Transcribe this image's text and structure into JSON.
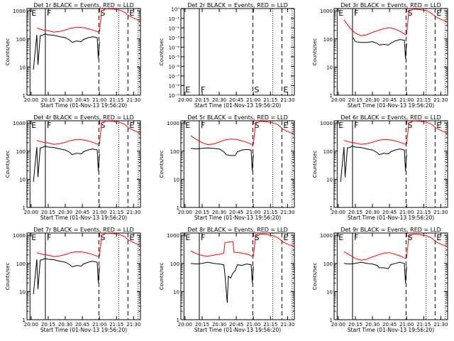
{
  "chart_data": [
    {
      "title": "Det 1r BLACK = Events, RED = LLD",
      "type": "line",
      "ylabel": "Counts/sec",
      "xlabel": "Start Time (01-Nov-13 19:56:20)",
      "x_ticks": [
        "20:00",
        "20:15",
        "20:30",
        "20:45",
        "21:00",
        "21:15",
        "21:30"
      ],
      "y_ticks": [
        "1",
        "10",
        "100",
        "1000"
      ],
      "yscale": "log",
      "ylim": [
        1,
        1200
      ],
      "xlim": [
        "19:56",
        "21:36"
      ],
      "markers": [
        "E",
        "F",
        "S",
        "E"
      ],
      "series": [
        {
          "color": "#ff0000",
          "x": [
            "20:05",
            "20:10",
            "20:15",
            "20:20",
            "20:25",
            "20:30",
            "20:35",
            "20:40",
            "20:45",
            "20:50",
            "20:55",
            "20:59",
            "21:00",
            "21:02",
            "21:06",
            "21:12",
            "21:18",
            "21:22",
            "21:26",
            "21:30",
            "21:36"
          ],
          "y": [
            240,
            210,
            195,
            175,
            185,
            205,
            240,
            260,
            255,
            230,
            200,
            175,
            180,
            1000,
            1180,
            1150,
            1050,
            900,
            650,
            550,
            430
          ]
        },
        {
          "color": "#000000",
          "x": [
            "20:02",
            "20:05",
            "20:06",
            "20:08",
            "20:10",
            "20:12",
            "20:15",
            "20:20",
            "20:25",
            "20:30",
            "20:34",
            "20:36",
            "20:40",
            "20:44",
            "20:46",
            "20:50",
            "20:54",
            "20:58",
            "20:59",
            "21:00"
          ],
          "y": [
            8,
            140,
            12,
            130,
            135,
            150,
            140,
            135,
            120,
            110,
            90,
            75,
            85,
            80,
            95,
            110,
            120,
            110,
            20,
            80
          ]
        }
      ]
    },
    {
      "title": "Det 2r BLACK = Events, RED = LLD",
      "type": "line",
      "ylabel": "Counts/sec",
      "xlabel": "Start Time (01-Nov-13 19:56:20)",
      "x_ticks": [
        "20:00",
        "20:15",
        "20:30",
        "20:45",
        "21:00",
        "21:15",
        "21:30"
      ],
      "y_ticks": [
        "10⁻⁹",
        "10⁻⁸",
        "10⁻⁷",
        "10⁻⁶",
        "10⁻⁵",
        "10⁻⁴",
        "10⁻³",
        "10⁻²",
        "10⁻¹",
        "10⁰"
      ],
      "yscale": "log",
      "markers": [
        "E",
        "F",
        "S",
        "E"
      ],
      "series": []
    },
    {
      "title": "Det 3r BLACK = Events, RED = LLD",
      "type": "line",
      "ylabel": "Counts/sec",
      "xlabel": "Start Time (01-Nov-13 19:56:20)",
      "x_ticks": [
        "20:00",
        "20:15",
        "20:30",
        "20:45",
        "21:00",
        "21:15",
        "21:30"
      ],
      "y_ticks": [
        "1",
        "10",
        "100",
        "1000"
      ],
      "yscale": "log",
      "ylim": [
        1,
        1200
      ],
      "markers": [
        "E",
        "F",
        "S",
        "E"
      ],
      "series": [
        {
          "color": "#ff0000",
          "x": [
            "20:05",
            "20:10",
            "20:15",
            "20:20",
            "20:25",
            "20:30",
            "20:35",
            "20:40",
            "20:45",
            "20:50",
            "20:55",
            "20:59",
            "21:00",
            "21:02",
            "21:06",
            "21:12",
            "21:18",
            "21:22",
            "21:26",
            "21:30",
            "21:36"
          ],
          "y": [
            480,
            250,
            160,
            130,
            140,
            170,
            200,
            230,
            250,
            220,
            180,
            140,
            150,
            950,
            1150,
            1100,
            1000,
            800,
            600,
            500,
            400
          ]
        },
        {
          "color": "#000000",
          "x": [
            "20:13",
            "20:15",
            "20:20",
            "20:25",
            "20:30",
            "20:34",
            "20:36",
            "20:40",
            "20:44",
            "20:46",
            "20:50",
            "20:54",
            "20:58",
            "20:59",
            "21:00"
          ],
          "y": [
            110,
            80,
            75,
            75,
            80,
            70,
            60,
            65,
            60,
            70,
            85,
            95,
            90,
            20,
            70
          ]
        }
      ]
    },
    {
      "title": "Det 4r BLACK = Events, RED = LLD",
      "type": "line",
      "ylabel": "Counts/sec",
      "xlabel": "Start Time (01-Nov-13 19:56:20)",
      "x_ticks": [
        "20:00",
        "20:15",
        "20:30",
        "20:45",
        "21:00",
        "21:15",
        "21:30"
      ],
      "y_ticks": [
        "1",
        "10",
        "100",
        "1000"
      ],
      "yscale": "log",
      "ylim": [
        1,
        1200
      ],
      "markers": [
        "E",
        "F",
        "S",
        "E"
      ],
      "series": [
        {
          "color": "#ff0000",
          "x": [
            "20:05",
            "20:10",
            "20:15",
            "20:20",
            "20:25",
            "20:30",
            "20:35",
            "20:40",
            "20:45",
            "20:50",
            "20:55",
            "20:59",
            "21:00",
            "21:02",
            "21:06",
            "21:12",
            "21:18",
            "21:22",
            "21:26",
            "21:30",
            "21:36"
          ],
          "y": [
            240,
            210,
            195,
            175,
            185,
            205,
            240,
            260,
            255,
            230,
            200,
            175,
            180,
            1000,
            1180,
            1150,
            1050,
            900,
            650,
            550,
            430
          ]
        },
        {
          "color": "#000000",
          "x": [
            "20:02",
            "20:05",
            "20:06",
            "20:08",
            "20:10",
            "20:12",
            "20:15",
            "20:20",
            "20:25",
            "20:30",
            "20:34",
            "20:36",
            "20:40",
            "20:44",
            "20:46",
            "20:50",
            "20:54",
            "20:58",
            "20:59",
            "21:00"
          ],
          "y": [
            8,
            140,
            12,
            130,
            135,
            150,
            140,
            135,
            120,
            110,
            90,
            75,
            85,
            80,
            95,
            110,
            120,
            110,
            20,
            80
          ]
        }
      ]
    },
    {
      "title": "Det 5r BLACK = Events, RED = LLD",
      "type": "line",
      "ylabel": "Counts/sec",
      "xlabel": "Start Time (01-Nov-13 19:56:20)",
      "x_ticks": [
        "20:00",
        "20:15",
        "20:30",
        "20:45",
        "21:00",
        "21:15",
        "21:30"
      ],
      "y_ticks": [
        "1",
        "10",
        "100",
        "1000"
      ],
      "yscale": "log",
      "ylim": [
        1,
        1200
      ],
      "markers": [
        "E",
        "F",
        "S",
        "E"
      ],
      "series": [
        {
          "color": "#ff0000",
          "x": [
            "20:05",
            "20:10",
            "20:15",
            "20:20",
            "20:25",
            "20:30",
            "20:35",
            "20:40",
            "20:45",
            "20:50",
            "20:55",
            "20:59",
            "21:00",
            "21:02",
            "21:06",
            "21:12",
            "21:18",
            "21:22",
            "21:26",
            "21:30",
            "21:36"
          ],
          "y": [
            350,
            260,
            200,
            170,
            180,
            210,
            250,
            270,
            260,
            230,
            200,
            170,
            180,
            950,
            1150,
            1100,
            1000,
            850,
            600,
            500,
            400
          ]
        },
        {
          "color": "#000000",
          "x": [
            "20:05",
            "20:10",
            "20:15",
            "20:20",
            "20:25",
            "20:30",
            "20:34",
            "20:36",
            "20:40",
            "20:44",
            "20:46",
            "20:50",
            "20:54",
            "20:58",
            "20:59",
            "21:00"
          ],
          "y": [
            125,
            120,
            125,
            130,
            125,
            120,
            95,
            75,
            70,
            70,
            95,
            110,
            115,
            110,
            20,
            80
          ]
        }
      ]
    },
    {
      "title": "Det 6r BLACK = Events, RED = LLD",
      "type": "line",
      "ylabel": "Counts/sec",
      "xlabel": "Start Time (01-Nov-13 19:56:20)",
      "x_ticks": [
        "20:00",
        "20:15",
        "20:30",
        "20:45",
        "21:00",
        "21:15",
        "21:30"
      ],
      "y_ticks": [
        "1",
        "10",
        "100",
        "1000"
      ],
      "yscale": "log",
      "ylim": [
        1,
        1200
      ],
      "markers": [
        "E",
        "F",
        "S",
        "E"
      ],
      "series": [
        {
          "color": "#ff0000",
          "x": [
            "20:05",
            "20:10",
            "20:15",
            "20:20",
            "20:25",
            "20:30",
            "20:35",
            "20:40",
            "20:45",
            "20:50",
            "20:55",
            "20:59",
            "21:00",
            "21:02",
            "21:06",
            "21:12",
            "21:18",
            "21:22",
            "21:26",
            "21:30",
            "21:36"
          ],
          "y": [
            240,
            210,
            195,
            175,
            185,
            205,
            240,
            260,
            255,
            230,
            200,
            175,
            180,
            1000,
            1180,
            1150,
            1050,
            900,
            650,
            550,
            430
          ]
        },
        {
          "color": "#000000",
          "x": [
            "20:02",
            "20:05",
            "20:06",
            "20:08",
            "20:10",
            "20:12",
            "20:15",
            "20:20",
            "20:25",
            "20:30",
            "20:34",
            "20:36",
            "20:40",
            "20:44",
            "20:46",
            "20:50",
            "20:54",
            "20:58",
            "20:59",
            "21:00"
          ],
          "y": [
            8,
            140,
            12,
            130,
            135,
            150,
            140,
            135,
            120,
            110,
            90,
            75,
            85,
            80,
            95,
            110,
            120,
            110,
            20,
            80
          ]
        }
      ]
    },
    {
      "title": "Det 7r BLACK = Events, RED = LLD",
      "type": "line",
      "ylabel": "Counts/sec",
      "xlabel": "Start Time (01-Nov-13 19:56:20)",
      "x_ticks": [
        "20:00",
        "20:15",
        "20:30",
        "20:45",
        "21:00",
        "21:15",
        "21:30"
      ],
      "y_ticks": [
        "1",
        "10",
        "100",
        "1000"
      ],
      "yscale": "log",
      "ylim": [
        1,
        1200
      ],
      "markers": [
        "E",
        "F",
        "S",
        "E"
      ],
      "series": [
        {
          "color": "#ff0000",
          "x": [
            "20:05",
            "20:10",
            "20:15",
            "20:20",
            "20:25",
            "20:30",
            "20:35",
            "20:40",
            "20:45",
            "20:50",
            "20:55",
            "20:59",
            "21:00",
            "21:02",
            "21:06",
            "21:12",
            "21:18",
            "21:22",
            "21:26",
            "21:30",
            "21:36"
          ],
          "y": [
            240,
            210,
            195,
            175,
            185,
            205,
            240,
            260,
            255,
            230,
            200,
            175,
            180,
            1000,
            1180,
            1150,
            1050,
            900,
            650,
            550,
            430
          ]
        },
        {
          "color": "#000000",
          "x": [
            "20:02",
            "20:05",
            "20:06",
            "20:08",
            "20:10",
            "20:12",
            "20:15",
            "20:20",
            "20:25",
            "20:30",
            "20:34",
            "20:36",
            "20:40",
            "20:44",
            "20:46",
            "20:50",
            "20:54",
            "20:58",
            "20:59",
            "21:00"
          ],
          "y": [
            8,
            140,
            12,
            130,
            135,
            150,
            140,
            135,
            120,
            110,
            90,
            75,
            85,
            80,
            95,
            110,
            120,
            110,
            20,
            80
          ]
        }
      ]
    },
    {
      "title": "Det 8r BLACK = Events, RED = LLD",
      "type": "line",
      "ylabel": "Counts/sec",
      "xlabel": "Start Time (01-Nov-13 19:56:20)",
      "x_ticks": [
        "20:00",
        "20:15",
        "20:30",
        "20:45",
        "21:00",
        "21:15",
        "21:30"
      ],
      "y_ticks": [
        "1",
        "10",
        "100",
        "1000"
      ],
      "yscale": "log",
      "ylim": [
        1,
        1200
      ],
      "markers": [
        "E",
        "F",
        "S",
        "E"
      ],
      "series": [
        {
          "color": "#ff0000",
          "x": [
            "20:05",
            "20:10",
            "20:15",
            "20:20",
            "20:25",
            "20:30",
            "20:34",
            "20:35",
            "20:42",
            "20:43",
            "20:48",
            "20:55",
            "20:59",
            "21:00",
            "21:02",
            "21:06",
            "21:12",
            "21:18",
            "21:22",
            "21:26",
            "21:30",
            "21:36"
          ],
          "y": [
            280,
            220,
            190,
            180,
            195,
            210,
            230,
            550,
            600,
            250,
            240,
            210,
            180,
            185,
            900,
            1100,
            1050,
            950,
            800,
            580,
            480,
            400
          ]
        },
        {
          "color": "#000000",
          "x": [
            "20:05",
            "20:10",
            "20:15",
            "20:20",
            "20:25",
            "20:30",
            "20:34",
            "20:35",
            "20:37",
            "20:38",
            "20:40",
            "20:42",
            "20:44",
            "20:46",
            "20:50",
            "20:54",
            "20:58",
            "20:59",
            "21:00"
          ],
          "y": [
            100,
            95,
            100,
            110,
            100,
            95,
            90,
            40,
            4,
            35,
            30,
            45,
            55,
            90,
            85,
            95,
            90,
            20,
            80
          ]
        }
      ]
    },
    {
      "title": "Det 9r BLACK = Events, RED = LLD",
      "type": "line",
      "ylabel": "Counts/sec",
      "xlabel": "Start Time (01-Nov-13 19:56:20)",
      "x_ticks": [
        "20:00",
        "20:15",
        "20:30",
        "20:45",
        "21:00",
        "21:15",
        "21:30"
      ],
      "y_ticks": [
        "1",
        "10",
        "100",
        "1000"
      ],
      "yscale": "log",
      "ylim": [
        1,
        1200
      ],
      "markers": [
        "E",
        "F",
        "S",
        "E"
      ],
      "series": [
        {
          "color": "#ff0000",
          "x": [
            "20:05",
            "20:10",
            "20:15",
            "20:20",
            "20:25",
            "20:30",
            "20:35",
            "20:40",
            "20:45",
            "20:50",
            "20:55",
            "20:59",
            "21:00",
            "21:02",
            "21:06",
            "21:12",
            "21:18",
            "21:22",
            "21:26",
            "21:30",
            "21:36"
          ],
          "y": [
            260,
            200,
            150,
            130,
            140,
            170,
            200,
            230,
            240,
            210,
            180,
            150,
            160,
            900,
            1100,
            1050,
            950,
            800,
            580,
            480,
            400
          ]
        },
        {
          "color": "#000000",
          "x": [
            "20:05",
            "20:10",
            "20:15",
            "20:20",
            "20:25",
            "20:30",
            "20:34",
            "20:36",
            "20:40",
            "20:44",
            "20:46",
            "20:50",
            "20:54",
            "20:58",
            "20:59",
            "21:00"
          ],
          "y": [
            100,
            95,
            100,
            110,
            100,
            95,
            85,
            70,
            70,
            65,
            90,
            100,
            110,
            100,
            20,
            80
          ]
        }
      ]
    }
  ]
}
